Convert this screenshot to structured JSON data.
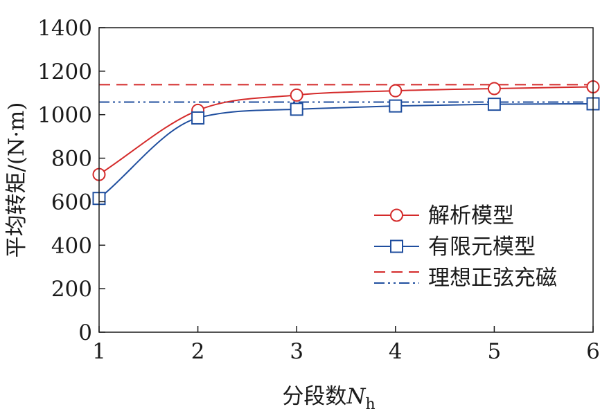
{
  "chart_data": {
    "type": "line",
    "xlabel": "分段数",
    "xlabel_symbol": "N",
    "xlabel_subscript": "h",
    "ylabel": "平均转矩/(N·m)",
    "xlim": [
      1,
      6
    ],
    "ylim": [
      0,
      1400
    ],
    "x_ticks": [
      1,
      2,
      3,
      4,
      5,
      6
    ],
    "y_ticks": [
      0,
      200,
      400,
      600,
      800,
      1000,
      1200,
      1400
    ],
    "grid": false,
    "legend_position": "right",
    "x": [
      1,
      2,
      3,
      4,
      5,
      6
    ],
    "series": [
      {
        "name": "解析模型",
        "values": [
          725,
          1020,
          1090,
          1110,
          1120,
          1128
        ],
        "color": "#d42a2a",
        "line": "solid",
        "marker": "circle"
      },
      {
        "name": "有限元模型",
        "values": [
          615,
          985,
          1025,
          1040,
          1048,
          1050
        ],
        "color": "#1f4e9e",
        "line": "solid",
        "marker": "square"
      }
    ],
    "reference_lines": [
      {
        "name": "理想正弦充磁",
        "values": [
          1138,
          1058
        ],
        "colors": [
          "#d42a2a",
          "#1f4e9e"
        ],
        "styles": [
          "dashed",
          "dash-dot-dot"
        ]
      }
    ]
  }
}
